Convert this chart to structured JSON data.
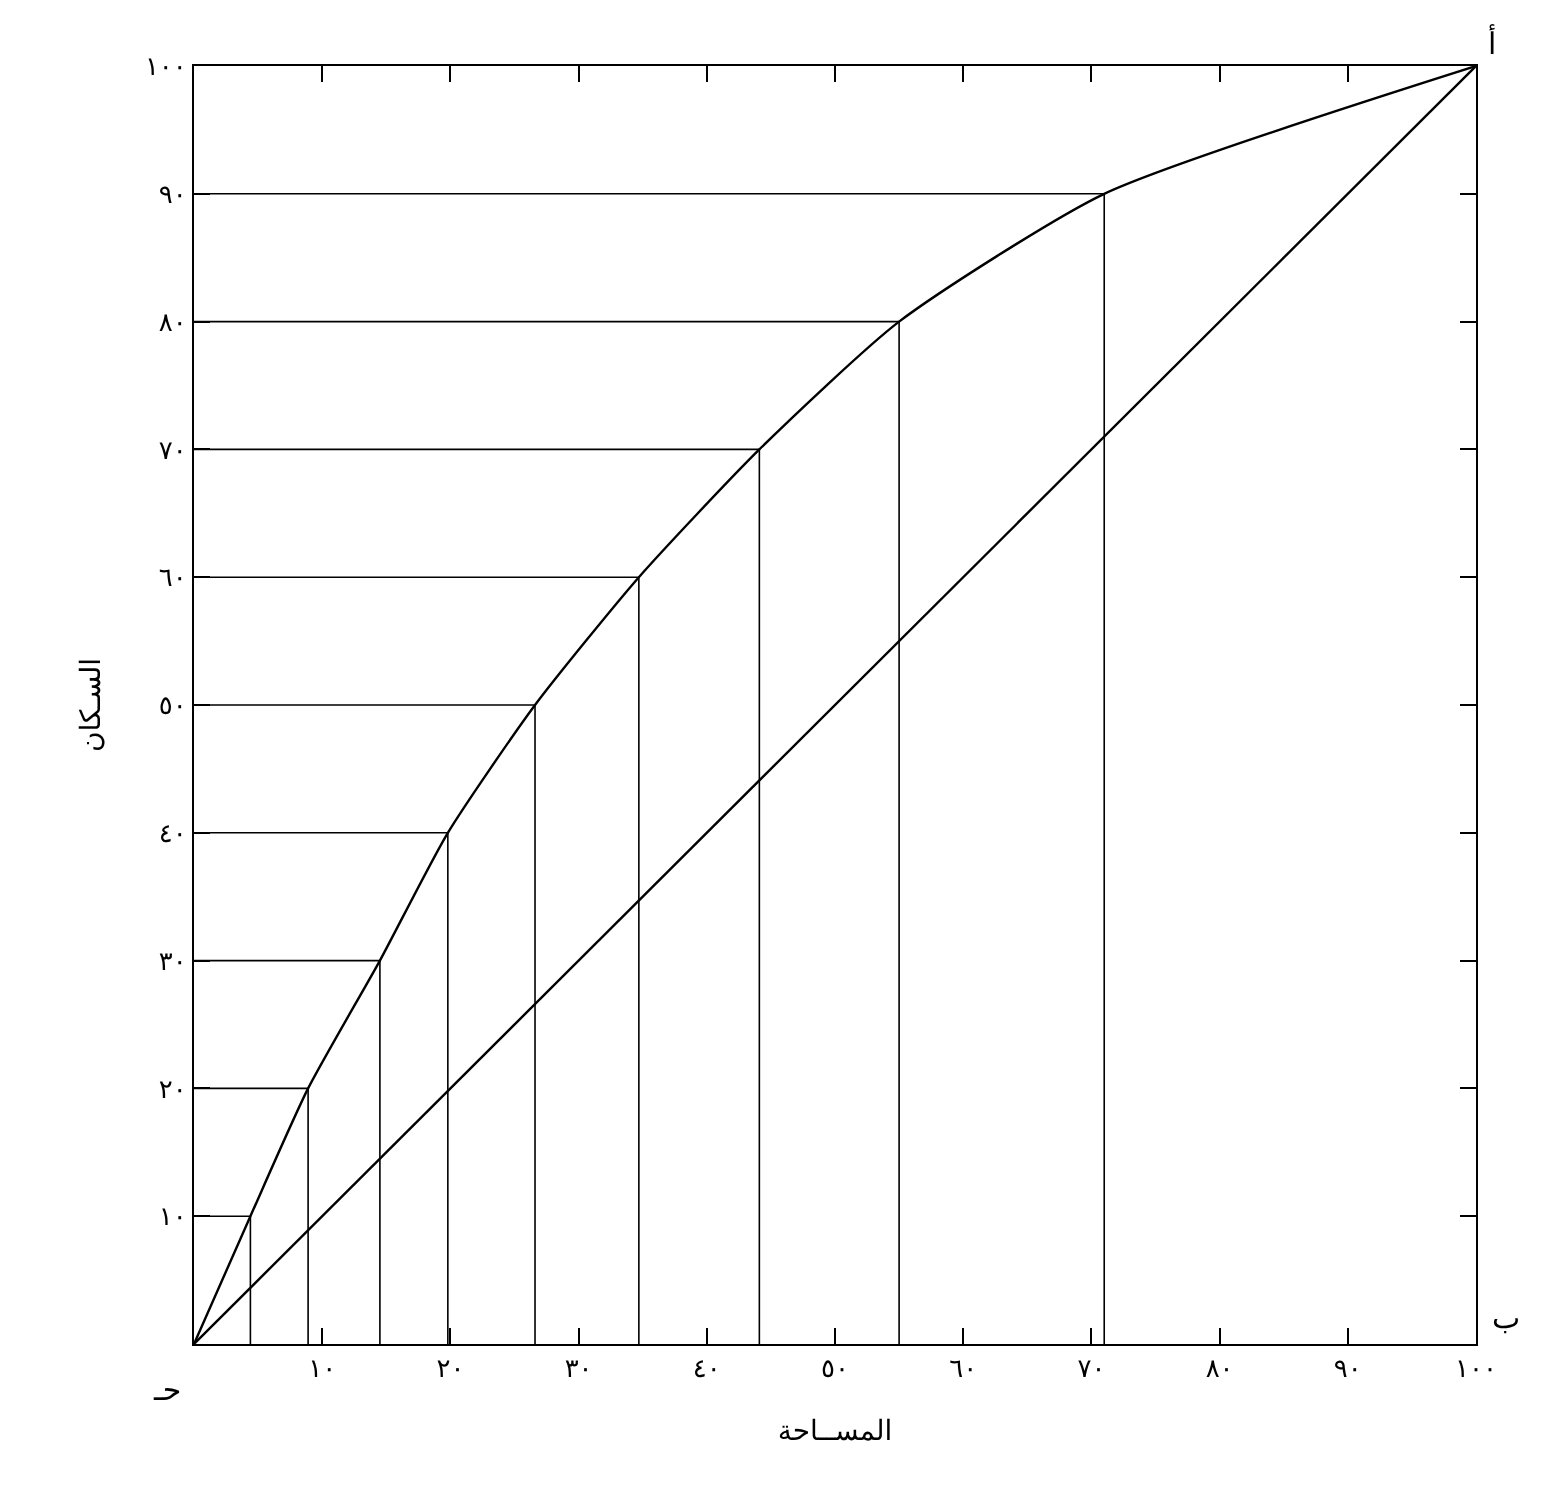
{
  "chart_data": {
    "type": "line",
    "xlabel": "المســاحة",
    "ylabel": "السـكان",
    "x": [
      0,
      4.4,
      8.9,
      14.5,
      19.8,
      26.6,
      34.7,
      44.1,
      55,
      71,
      100
    ],
    "series": [
      {
        "color": "#000000",
        "values": [
          0,
          10,
          20,
          30,
          40,
          50,
          60,
          70,
          80,
          90,
          100
        ]
      },
      {
        "color": "#000000",
        "x": [
          0,
          100
        ],
        "values": [
          0,
          100
        ]
      },
      {
        "color": "#000000",
        "x": [
          0,
          4.4,
          4.4
        ],
        "values": [
          10,
          10,
          0
        ]
      },
      {
        "color": "#000000",
        "x": [
          0,
          8.9,
          8.9
        ],
        "values": [
          20,
          20,
          0
        ]
      },
      {
        "color": "#000000",
        "x": [
          0,
          14.5,
          14.5
        ],
        "values": [
          30,
          30,
          0
        ]
      },
      {
        "color": "#000000",
        "x": [
          0,
          19.8,
          19.8
        ],
        "values": [
          40,
          40,
          0
        ]
      },
      {
        "color": "#000000",
        "x": [
          0,
          26.6,
          26.6
        ],
        "values": [
          50,
          50,
          0
        ]
      },
      {
        "color": "#000000",
        "x": [
          0,
          34.7,
          34.7
        ],
        "values": [
          60,
          60,
          0
        ]
      },
      {
        "color": "#000000",
        "x": [
          0,
          44.1,
          44.1
        ],
        "values": [
          70,
          70,
          0
        ]
      },
      {
        "color": "#000000",
        "x": [
          0,
          55,
          55
        ],
        "values": [
          80,
          80,
          0
        ]
      },
      {
        "color": "#000000",
        "x": [
          0,
          71,
          71
        ],
        "values": [
          90,
          90,
          0
        ]
      }
    ],
    "xlim": [
      0,
      100
    ],
    "ylim": [
      0,
      100
    ],
    "xticks": [
      {
        "value": 10,
        "label": "١٠"
      },
      {
        "value": 20,
        "label": "٢٠"
      },
      {
        "value": 30,
        "label": "٣٠"
      },
      {
        "value": 40,
        "label": "٤٠"
      },
      {
        "value": 50,
        "label": "٥٠"
      },
      {
        "value": 60,
        "label": "٦٠"
      },
      {
        "value": 70,
        "label": "٧٠"
      },
      {
        "value": 80,
        "label": "٨٠"
      },
      {
        "value": 90,
        "label": "٩٠"
      },
      {
        "value": 100,
        "label": "١٠٠"
      }
    ],
    "yticks": [
      {
        "value": 10,
        "label": "١٠"
      },
      {
        "value": 20,
        "label": "٢٠"
      },
      {
        "value": 30,
        "label": "٣٠"
      },
      {
        "value": 40,
        "label": "٤٠"
      },
      {
        "value": 50,
        "label": "٥٠"
      },
      {
        "value": 60,
        "label": "٦٠"
      },
      {
        "value": 70,
        "label": "٧٠"
      },
      {
        "value": 80,
        "label": "٨٠"
      },
      {
        "value": 90,
        "label": "٩٠"
      },
      {
        "value": 100,
        "label": "١٠٠"
      }
    ],
    "annotations": [
      "أ",
      "ب",
      "حـ"
    ],
    "marker": "none",
    "line_style": "solid"
  }
}
